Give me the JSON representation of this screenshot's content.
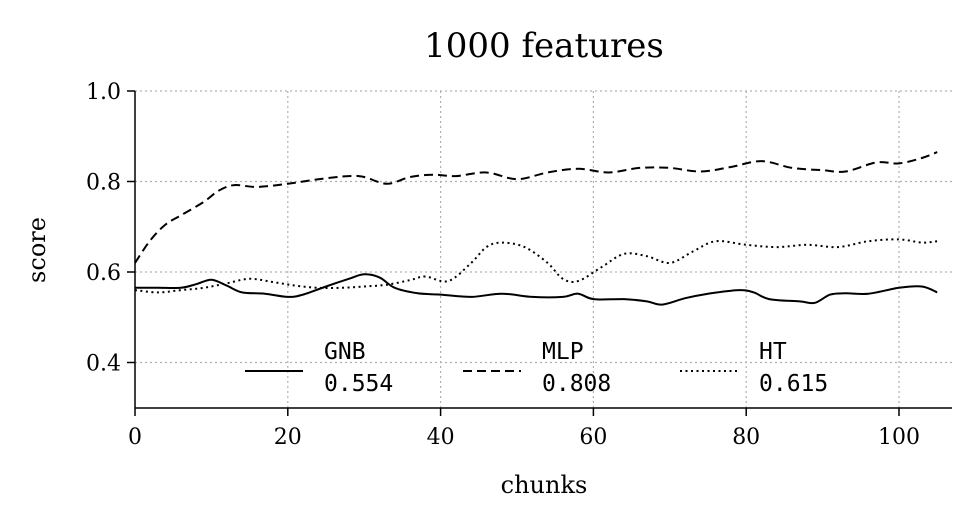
{
  "chart_data": {
    "type": "line",
    "title": "1000 features",
    "xlabel": "chunks",
    "ylabel": "score",
    "xlim": [
      0,
      107
    ],
    "ylim": [
      0.3,
      1.0
    ],
    "xticks": [
      "0",
      "20",
      "40",
      "60",
      "80",
      "100"
    ],
    "yticks": [
      "0.4",
      "0.6",
      "0.8",
      "1.0"
    ],
    "grid": true,
    "legend_position": "bottom-center",
    "series": [
      {
        "name": "GNB",
        "legend_value": "0.554",
        "style": "solid",
        "x": [
          0,
          3,
          6,
          8,
          10,
          12,
          14,
          17,
          20,
          22,
          25,
          28,
          30,
          32,
          34,
          37,
          40,
          44,
          48,
          52,
          56,
          58,
          60,
          64,
          67,
          69,
          72,
          75,
          79,
          81,
          83,
          87,
          89,
          91,
          93,
          96,
          100,
          103,
          105
        ],
        "values": [
          0.565,
          0.565,
          0.565,
          0.573,
          0.583,
          0.57,
          0.555,
          0.552,
          0.545,
          0.55,
          0.568,
          0.585,
          0.595,
          0.588,
          0.565,
          0.553,
          0.55,
          0.545,
          0.552,
          0.545,
          0.545,
          0.552,
          0.54,
          0.54,
          0.535,
          0.528,
          0.542,
          0.552,
          0.56,
          0.555,
          0.54,
          0.535,
          0.532,
          0.55,
          0.553,
          0.552,
          0.565,
          0.568,
          0.555
        ]
      },
      {
        "name": "MLP",
        "legend_value": "0.808",
        "style": "dashed",
        "x": [
          0,
          2,
          4,
          6,
          9,
          11,
          13,
          16,
          20,
          24,
          28,
          30,
          33,
          36,
          39,
          42,
          46,
          50,
          54,
          58,
          62,
          66,
          70,
          74,
          78,
          82,
          86,
          90,
          93,
          97,
          100,
          103,
          105
        ],
        "values": [
          0.62,
          0.67,
          0.705,
          0.725,
          0.755,
          0.78,
          0.792,
          0.788,
          0.795,
          0.805,
          0.812,
          0.81,
          0.795,
          0.81,
          0.815,
          0.812,
          0.82,
          0.805,
          0.82,
          0.828,
          0.82,
          0.83,
          0.83,
          0.822,
          0.832,
          0.845,
          0.83,
          0.825,
          0.822,
          0.842,
          0.84,
          0.852,
          0.865
        ]
      },
      {
        "name": "HT",
        "legend_value": "0.615",
        "style": "dotted",
        "x": [
          0,
          3,
          6,
          9,
          12,
          15,
          18,
          21,
          24,
          27,
          30,
          33,
          36,
          38,
          41,
          44,
          46,
          48,
          51,
          54,
          56,
          58,
          61,
          64,
          67,
          70,
          73,
          76,
          80,
          84,
          88,
          92,
          96,
          100,
          103,
          105
        ],
        "values": [
          0.56,
          0.555,
          0.56,
          0.565,
          0.575,
          0.585,
          0.578,
          0.57,
          0.565,
          0.565,
          0.568,
          0.572,
          0.582,
          0.59,
          0.58,
          0.62,
          0.655,
          0.665,
          0.655,
          0.62,
          0.585,
          0.58,
          0.61,
          0.64,
          0.635,
          0.62,
          0.645,
          0.668,
          0.66,
          0.655,
          0.66,
          0.655,
          0.668,
          0.672,
          0.665,
          0.668
        ]
      }
    ]
  }
}
